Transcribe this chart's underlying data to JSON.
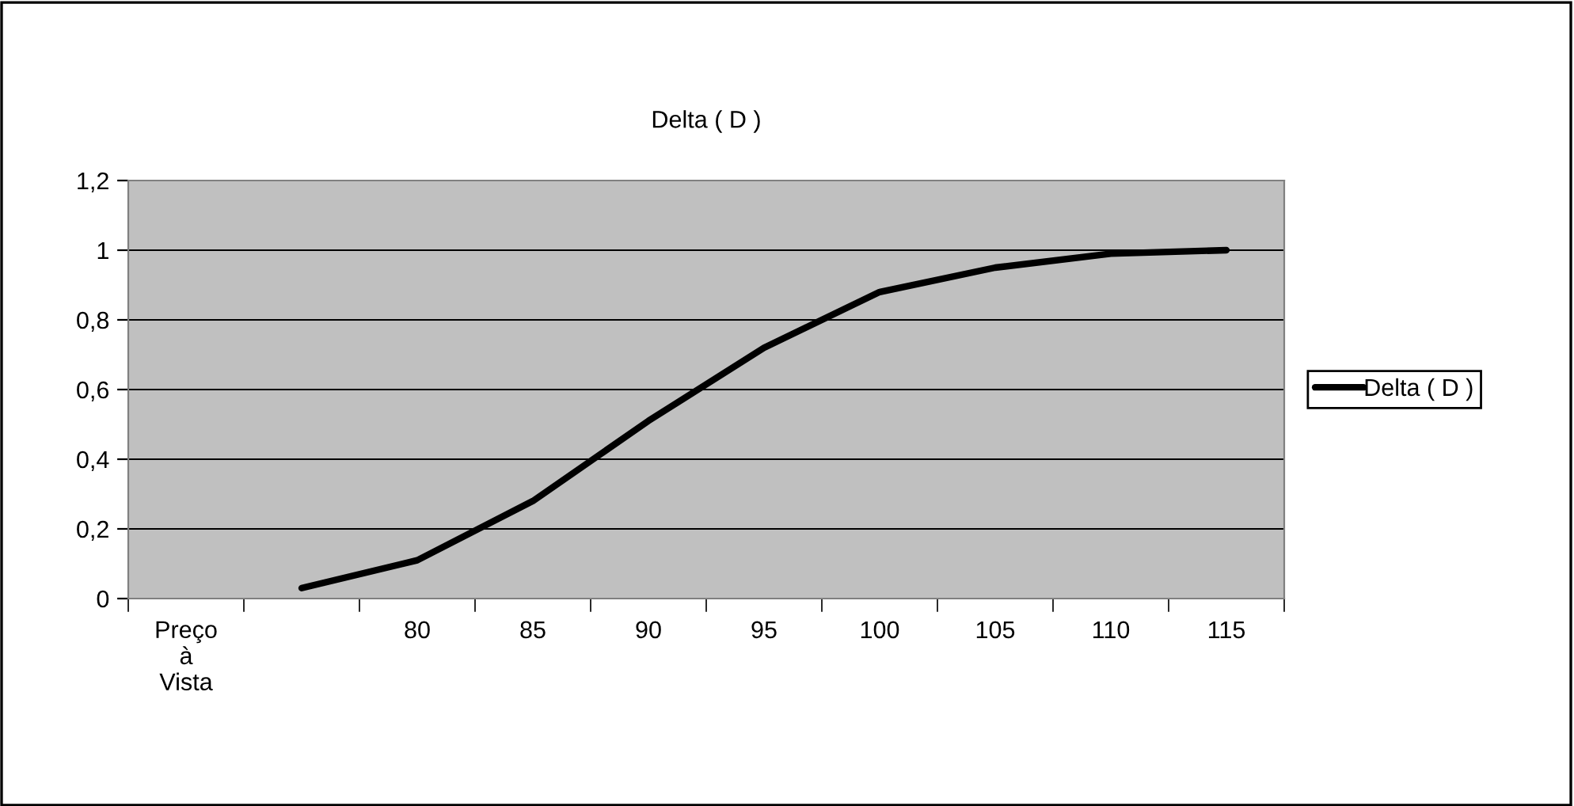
{
  "chart_data": {
    "type": "line",
    "title": "Delta ( D )",
    "categories": [
      "Preço à Vista",
      null,
      "80",
      "85",
      "90",
      "95",
      "100",
      "105",
      "110",
      "115"
    ],
    "series": [
      {
        "name": "Delta ( D )",
        "color": "#000000",
        "values": [
          null,
          0.03,
          0.11,
          0.28,
          0.51,
          0.72,
          0.88,
          0.95,
          0.99,
          1.0
        ]
      }
    ],
    "ylim": [
      0,
      1.2
    ],
    "yticks": [
      0,
      {
        "value": 0.2,
        "label": "0,2"
      },
      {
        "value": 0.4,
        "label": "0,4"
      },
      {
        "value": 0.6,
        "label": "0,6"
      },
      {
        "value": 0.8,
        "label": "0,8"
      },
      1,
      {
        "value": 1.2,
        "label": "1,2"
      }
    ],
    "grid": "y",
    "legend": "right",
    "marker": "none",
    "line_style": "solid"
  }
}
